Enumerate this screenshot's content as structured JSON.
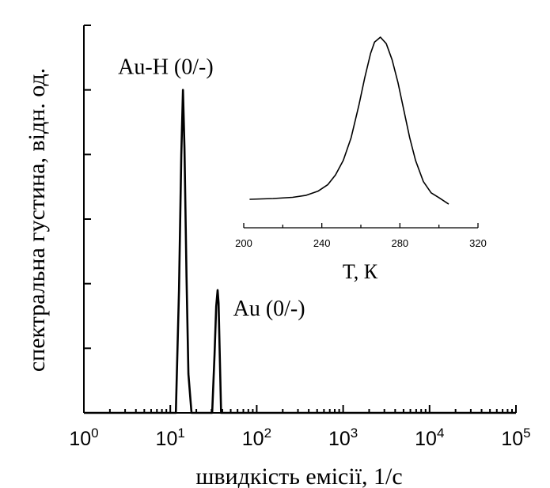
{
  "chart_data": [
    {
      "type": "line",
      "role": "main",
      "xlabel": "швидкість емісії, 1/с",
      "ylabel": "спектральна густина, відн. од.",
      "xscale": "log",
      "xlim": [
        1,
        100000
      ],
      "ylim": [
        0,
        1.2
      ],
      "x_ticks": [
        {
          "base": "10",
          "exp": "0"
        },
        {
          "base": "10",
          "exp": "1"
        },
        {
          "base": "10",
          "exp": "2"
        },
        {
          "base": "10",
          "exp": "3"
        },
        {
          "base": "10",
          "exp": "4"
        },
        {
          "base": "10",
          "exp": "5"
        }
      ],
      "y_tick_labels_shown": false,
      "annotations": [
        {
          "text": "Au-H (0/-)",
          "x": 14,
          "y": 1.0
        },
        {
          "text": "Au (0/-)",
          "x": 35,
          "y": 0.38
        }
      ],
      "series": [
        {
          "x": [
            1,
            11.6,
            12.6,
            13.4,
            14,
            14.6,
            15.4,
            16.2,
            17.6,
            30.5,
            32.5,
            34,
            35.3,
            36.2,
            37.2,
            38.7,
            100000
          ],
          "y": [
            0,
            0,
            0.38,
            0.8,
            1.0,
            0.82,
            0.42,
            0.12,
            0,
            0,
            0.18,
            0.33,
            0.38,
            0.34,
            0.2,
            0,
            0
          ]
        }
      ]
    },
    {
      "type": "line",
      "role": "inset",
      "xlabel": "T, К",
      "ylabel": "",
      "xlim": [
        200,
        320
      ],
      "x_ticks": [
        "200",
        "240",
        "280",
        "320"
      ],
      "y_axis_shown": false,
      "series": [
        {
          "x": [
            203,
            215,
            225,
            232,
            238,
            243,
            247,
            251,
            255,
            259,
            262,
            265,
            267,
            270,
            273,
            276,
            279,
            282,
            285,
            288,
            292,
            296,
            300,
            305
          ],
          "y": [
            0.0,
            0.005,
            0.012,
            0.025,
            0.05,
            0.09,
            0.15,
            0.24,
            0.38,
            0.58,
            0.75,
            0.9,
            0.97,
            1.0,
            0.96,
            0.86,
            0.72,
            0.55,
            0.38,
            0.24,
            0.11,
            0.04,
            0.01,
            -0.03
          ]
        }
      ]
    }
  ]
}
